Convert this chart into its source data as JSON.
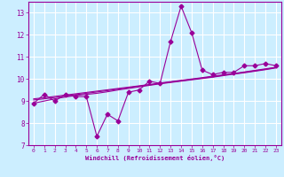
{
  "xlabel": "Windchill (Refroidissement éolien,°C)",
  "x_values": [
    0,
    1,
    2,
    3,
    4,
    5,
    6,
    7,
    8,
    9,
    10,
    11,
    12,
    13,
    14,
    15,
    16,
    17,
    18,
    19,
    20,
    21,
    22,
    23
  ],
  "main_line": [
    8.9,
    9.3,
    9.0,
    9.3,
    9.2,
    9.2,
    7.4,
    8.4,
    8.1,
    9.4,
    9.5,
    9.9,
    9.8,
    11.7,
    13.3,
    12.1,
    10.4,
    10.2,
    10.3,
    10.3,
    10.6,
    10.6,
    10.7,
    10.6
  ],
  "smooth_line1": [
    8.9,
    9.0,
    9.1,
    9.18,
    9.25,
    9.3,
    9.35,
    9.42,
    9.5,
    9.57,
    9.64,
    9.71,
    9.78,
    9.84,
    9.9,
    9.96,
    10.02,
    10.08,
    10.15,
    10.22,
    10.28,
    10.35,
    10.42,
    10.5
  ],
  "smooth_line2": [
    9.05,
    9.1,
    9.16,
    9.22,
    9.29,
    9.35,
    9.41,
    9.47,
    9.54,
    9.6,
    9.67,
    9.73,
    9.8,
    9.86,
    9.92,
    9.98,
    10.04,
    10.1,
    10.17,
    10.23,
    10.3,
    10.37,
    10.44,
    10.52
  ],
  "smooth_line3": [
    9.1,
    9.15,
    9.21,
    9.27,
    9.33,
    9.39,
    9.45,
    9.51,
    9.57,
    9.63,
    9.69,
    9.75,
    9.82,
    9.88,
    9.94,
    10.0,
    10.06,
    10.13,
    10.19,
    10.25,
    10.32,
    10.39,
    10.46,
    10.53
  ],
  "ylim": [
    7,
    13.5
  ],
  "xlim": [
    -0.5,
    23.5
  ],
  "yticks": [
    7,
    8,
    9,
    10,
    11,
    12,
    13
  ],
  "xticks": [
    0,
    1,
    2,
    3,
    4,
    5,
    6,
    7,
    8,
    9,
    10,
    11,
    12,
    13,
    14,
    15,
    16,
    17,
    18,
    19,
    20,
    21,
    22,
    23
  ],
  "line_color": "#990099",
  "bg_color": "#cceeff",
  "grid_color": "#ffffff",
  "marker": "D",
  "marker_size": 2.5,
  "linewidth": 0.8
}
